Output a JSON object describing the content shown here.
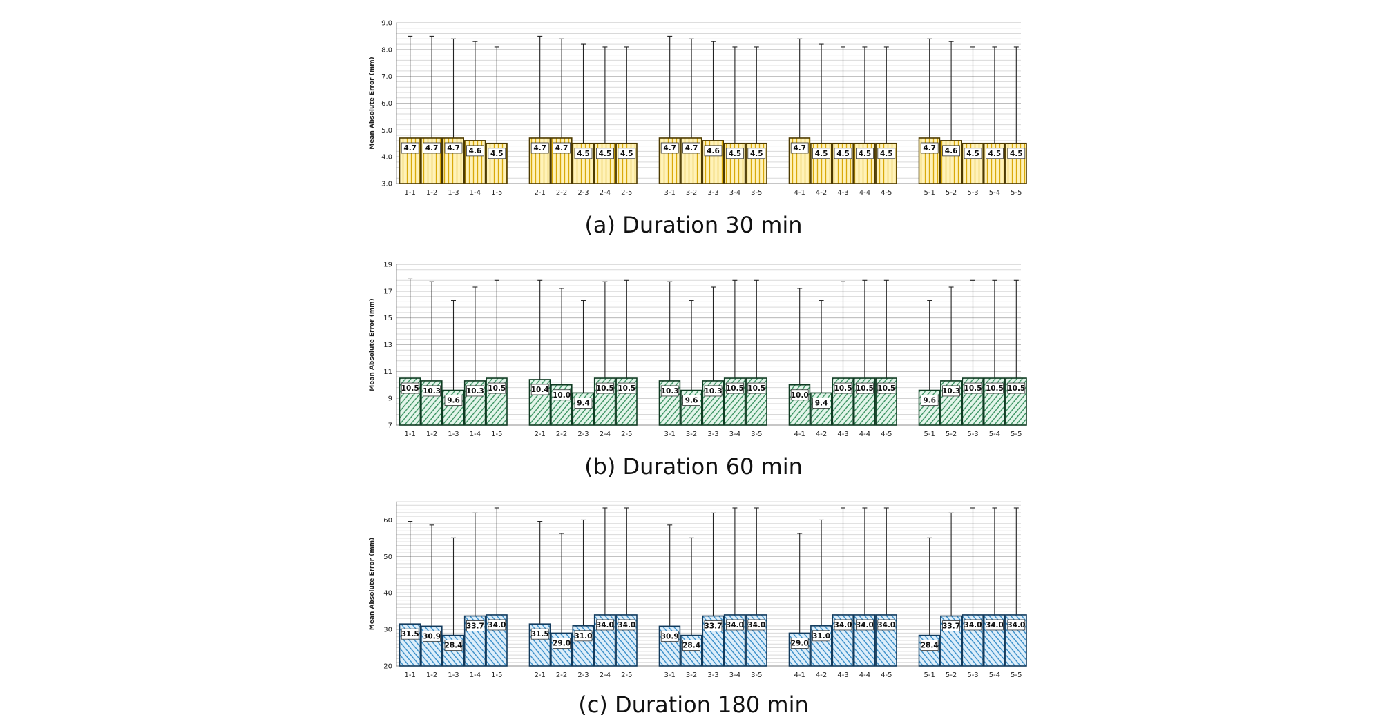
{
  "chart_data": [
    {
      "type": "bar",
      "caption": "(a) Duration 30 min",
      "ylabel": "Mean Absolute Error (mm)",
      "ylim": [
        3.0,
        9.0
      ],
      "yticks": [
        "3.0",
        "4.0",
        "5.0",
        "6.0",
        "7.0",
        "8.0",
        "9.0"
      ],
      "grid": true,
      "categories": [
        "1-1",
        "1-2",
        "1-3",
        "1-4",
        "1-5",
        "2-1",
        "2-2",
        "2-3",
        "2-4",
        "2-5",
        "3-1",
        "3-2",
        "3-3",
        "3-4",
        "3-5",
        "4-1",
        "4-2",
        "4-3",
        "4-4",
        "4-5",
        "5-1",
        "5-2",
        "5-3",
        "5-4",
        "5-5"
      ],
      "values": [
        4.7,
        4.7,
        4.7,
        4.6,
        4.5,
        4.7,
        4.7,
        4.5,
        4.5,
        4.5,
        4.7,
        4.7,
        4.6,
        4.5,
        4.5,
        4.7,
        4.5,
        4.5,
        4.5,
        4.5,
        4.7,
        4.6,
        4.5,
        4.5,
        4.5
      ],
      "labels": [
        "4.7",
        "4.7",
        "4.7",
        "4.6",
        "4.5",
        "4.7",
        "4.7",
        "4.5",
        "4.5",
        "4.5",
        "4.7",
        "4.7",
        "4.6",
        "4.5",
        "4.5",
        "4.7",
        "4.5",
        "4.5",
        "4.5",
        "4.5",
        "4.7",
        "4.6",
        "4.5",
        "4.5",
        "4.5"
      ],
      "error_upper": [
        8.5,
        8.5,
        8.4,
        8.3,
        8.1,
        8.5,
        8.4,
        8.2,
        8.1,
        8.1,
        8.5,
        8.4,
        8.3,
        8.1,
        8.1,
        8.4,
        8.2,
        8.1,
        8.1,
        8.1,
        8.4,
        8.3,
        8.1,
        8.1,
        8.1
      ],
      "colors": {
        "fill": "#fff2b8",
        "pattern": "#d9a90a",
        "edge": "#4d3a00"
      },
      "pattern": "vertical"
    },
    {
      "type": "bar",
      "caption": "(b) Duration 60 min",
      "ylabel": "Mean Absolute Error (mm)",
      "ylim": [
        7,
        19
      ],
      "yticks": [
        "7",
        "9",
        "11",
        "13",
        "15",
        "17",
        "19"
      ],
      "grid": true,
      "categories": [
        "1-1",
        "1-2",
        "1-3",
        "1-4",
        "1-5",
        "2-1",
        "2-2",
        "2-3",
        "2-4",
        "2-5",
        "3-1",
        "3-2",
        "3-3",
        "3-4",
        "3-5",
        "4-1",
        "4-2",
        "4-3",
        "4-4",
        "4-5",
        "5-1",
        "5-2",
        "5-3",
        "5-4",
        "5-5"
      ],
      "values": [
        10.5,
        10.3,
        9.6,
        10.3,
        10.5,
        10.4,
        10.0,
        9.4,
        10.5,
        10.5,
        10.3,
        9.6,
        10.3,
        10.5,
        10.5,
        10.0,
        9.4,
        10.5,
        10.5,
        10.5,
        9.6,
        10.3,
        10.5,
        10.5,
        10.5
      ],
      "labels": [
        "10.5",
        "10.3",
        "9.6",
        "10.3",
        "10.5",
        "10.4",
        "10.0",
        "9.4",
        "10.5",
        "10.5",
        "10.3",
        "9.6",
        "10.3",
        "10.5",
        "10.5",
        "10.0",
        "9.4",
        "10.5",
        "10.5",
        "10.5",
        "9.6",
        "10.3",
        "10.5",
        "10.5",
        "10.5"
      ],
      "error_upper": [
        17.9,
        17.7,
        16.3,
        17.3,
        17.8,
        17.8,
        17.2,
        16.3,
        17.7,
        17.8,
        17.7,
        16.3,
        17.3,
        17.8,
        17.8,
        17.2,
        16.3,
        17.7,
        17.8,
        17.8,
        16.3,
        17.3,
        17.8,
        17.8,
        17.8
      ],
      "colors": {
        "fill": "#e3f5ea",
        "pattern": "#2e8b57",
        "edge": "#0f3b22"
      },
      "pattern": "diagonal"
    },
    {
      "type": "bar",
      "caption": "(c) Duration 180 min",
      "ylabel": "Mean Absolute Error (mm)",
      "ylim": [
        20,
        65
      ],
      "yticks": [
        "20",
        "30",
        "40",
        "50",
        "60"
      ],
      "grid": true,
      "categories": [
        "1-1",
        "1-2",
        "1-3",
        "1-4",
        "1-5",
        "2-1",
        "2-2",
        "2-3",
        "2-4",
        "2-5",
        "3-1",
        "3-2",
        "3-3",
        "3-4",
        "3-5",
        "4-1",
        "4-2",
        "4-3",
        "4-4",
        "4-5",
        "5-1",
        "5-2",
        "5-3",
        "5-4",
        "5-5"
      ],
      "values": [
        31.5,
        30.9,
        28.4,
        33.7,
        34.0,
        31.5,
        29.0,
        31.0,
        34.0,
        34.0,
        30.9,
        28.4,
        33.7,
        34.0,
        34.0,
        29.0,
        31.0,
        34.0,
        34.0,
        34.0,
        28.4,
        33.7,
        34.0,
        34.0,
        34.0
      ],
      "labels": [
        "31.5",
        "30.9",
        "28.4",
        "33.7",
        "34.0",
        "31.5",
        "29.0",
        "31.0",
        "34.0",
        "34.0",
        "30.9",
        "28.4",
        "33.7",
        "34.0",
        "34.0",
        "29.0",
        "31.0",
        "34.0",
        "34.0",
        "34.0",
        "28.4",
        "33.7",
        "34.0",
        "34.0",
        "34.0"
      ],
      "error_upper": [
        59.6,
        58.6,
        55.1,
        61.9,
        63.3,
        59.6,
        56.3,
        60.0,
        63.3,
        63.3,
        58.6,
        55.1,
        61.9,
        63.3,
        63.3,
        56.3,
        60.0,
        63.3,
        63.3,
        63.3,
        55.1,
        61.9,
        63.3,
        63.3,
        63.3
      ],
      "colors": {
        "fill": "#ddeefa",
        "pattern": "#2b86c5",
        "edge": "#123a5c"
      },
      "pattern": "diagonal-reverse"
    }
  ]
}
